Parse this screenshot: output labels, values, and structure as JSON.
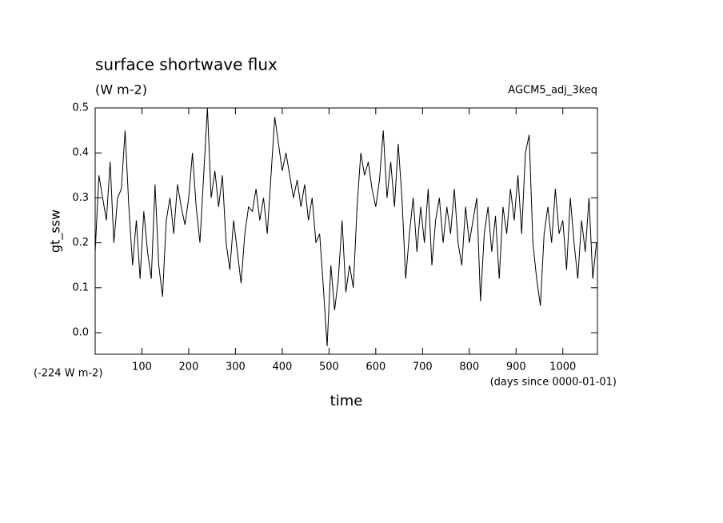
{
  "chart_data": {
    "type": "line",
    "title": "surface shortwave flux",
    "subtitle": "(W m-2)",
    "annotation_right": "AGCM5_adj_3keq",
    "ylabel": "gt_ssw",
    "offset_label": "(-224 W m-2)",
    "xlabel": "time",
    "xunits": "(days since 0000-01-01)",
    "color": "#000000",
    "xlim": [
      0,
      1074
    ],
    "ylim": [
      -0.048,
      0.5
    ],
    "xticks": [
      100,
      200,
      300,
      400,
      500,
      600,
      700,
      800,
      900,
      1000
    ],
    "yticks": [
      {
        "value": 0,
        "label": "0.0"
      },
      0.1,
      0.2,
      0.3,
      0.4,
      0.5
    ],
    "x": [
      0,
      8,
      16,
      24,
      32,
      40,
      48,
      56,
      64,
      72,
      80,
      88,
      96,
      104,
      112,
      120,
      128,
      136,
      144,
      152,
      160,
      168,
      176,
      184,
      192,
      200,
      208,
      216,
      224,
      232,
      240,
      248,
      256,
      264,
      272,
      280,
      288,
      296,
      304,
      312,
      320,
      328,
      336,
      344,
      352,
      360,
      368,
      376,
      384,
      392,
      400,
      408,
      416,
      424,
      432,
      440,
      448,
      456,
      464,
      472,
      480,
      488,
      496,
      504,
      512,
      520,
      528,
      536,
      544,
      552,
      560,
      568,
      576,
      584,
      592,
      600,
      608,
      616,
      624,
      632,
      640,
      648,
      656,
      664,
      672,
      680,
      688,
      696,
      704,
      712,
      720,
      728,
      736,
      744,
      752,
      760,
      768,
      776,
      784,
      792,
      800,
      808,
      816,
      824,
      832,
      840,
      848,
      856,
      864,
      872,
      880,
      888,
      896,
      904,
      912,
      920,
      928,
      936,
      944,
      952,
      960,
      968,
      976,
      984,
      992,
      1000,
      1008,
      1016,
      1024,
      1032,
      1040,
      1048,
      1056,
      1064,
      1072
    ],
    "values": [
      0.18,
      0.35,
      0.3,
      0.25,
      0.38,
      0.2,
      0.3,
      0.32,
      0.45,
      0.28,
      0.15,
      0.25,
      0.12,
      0.27,
      0.18,
      0.12,
      0.33,
      0.15,
      0.08,
      0.25,
      0.3,
      0.22,
      0.33,
      0.28,
      0.24,
      0.3,
      0.4,
      0.28,
      0.2,
      0.35,
      0.5,
      0.3,
      0.36,
      0.28,
      0.35,
      0.2,
      0.14,
      0.25,
      0.18,
      0.11,
      0.22,
      0.28,
      0.27,
      0.32,
      0.25,
      0.3,
      0.22,
      0.35,
      0.48,
      0.42,
      0.36,
      0.4,
      0.35,
      0.3,
      0.34,
      0.28,
      0.33,
      0.25,
      0.3,
      0.2,
      0.22,
      0.1,
      -0.03,
      0.15,
      0.05,
      0.12,
      0.25,
      0.09,
      0.15,
      0.1,
      0.28,
      0.4,
      0.35,
      0.38,
      0.32,
      0.28,
      0.34,
      0.45,
      0.3,
      0.38,
      0.28,
      0.42,
      0.3,
      0.12,
      0.22,
      0.3,
      0.18,
      0.28,
      0.2,
      0.32,
      0.15,
      0.25,
      0.3,
      0.2,
      0.28,
      0.22,
      0.32,
      0.2,
      0.15,
      0.28,
      0.2,
      0.25,
      0.3,
      0.07,
      0.22,
      0.28,
      0.18,
      0.26,
      0.12,
      0.28,
      0.22,
      0.32,
      0.25,
      0.35,
      0.22,
      0.4,
      0.44,
      0.2,
      0.12,
      0.06,
      0.22,
      0.28,
      0.2,
      0.32,
      0.22,
      0.25,
      0.14,
      0.3,
      0.2,
      0.12,
      0.25,
      0.18,
      0.3,
      0.12,
      0.2
    ]
  }
}
